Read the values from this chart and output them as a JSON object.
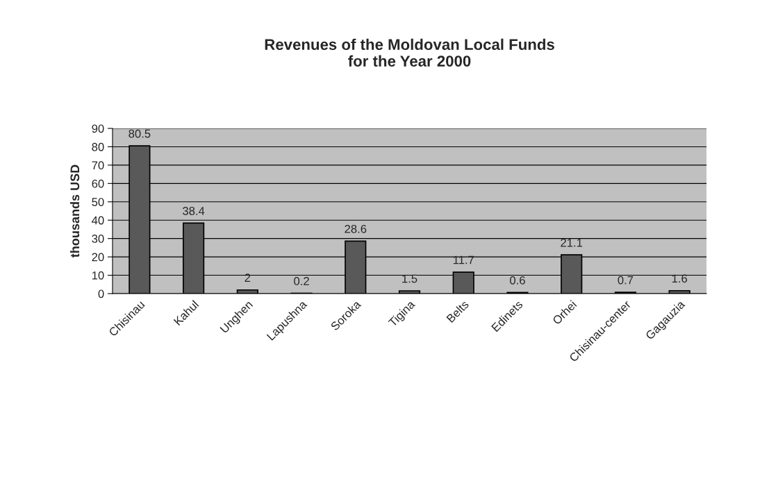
{
  "chart_data": {
    "type": "bar",
    "title": "Revenues of the Moldovan Local Funds\nfor the Year 2000",
    "ylabel": "thousands USD",
    "categories": [
      "Chisinau",
      "Kahul",
      "Unghen",
      "Lapushna",
      "Soroka",
      "Tigina",
      "Belts",
      "Edinets",
      "Orhei",
      "Chisinau-center",
      "Gagauzia"
    ],
    "values": [
      80.5,
      38.4,
      2,
      0.2,
      28.6,
      1.5,
      11.7,
      0.6,
      21.1,
      0.7,
      1.6
    ],
    "color": "#595959",
    "ylim": [
      0,
      90
    ],
    "yticks": [
      0,
      10,
      20,
      30,
      40,
      50,
      60,
      70,
      80,
      90
    ],
    "grid": "y",
    "data_labels": true,
    "legend": false
  }
}
